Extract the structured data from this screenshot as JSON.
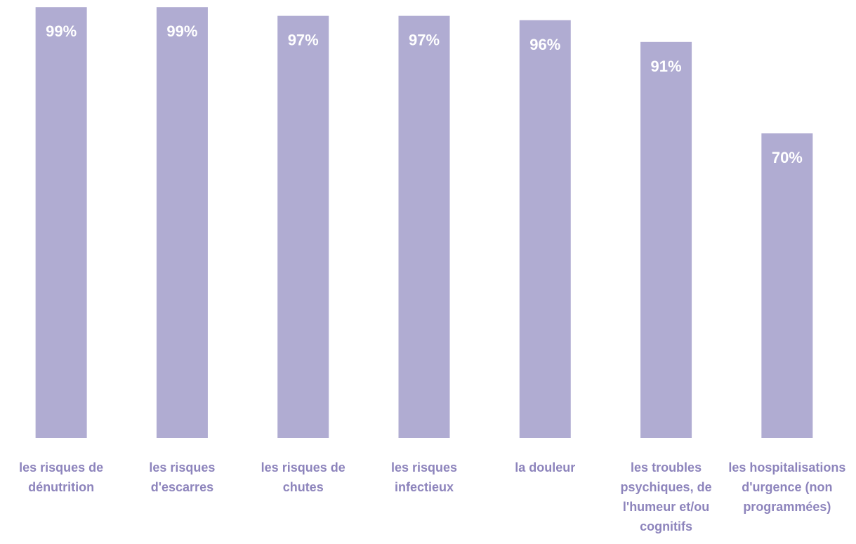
{
  "chart_data": {
    "type": "bar",
    "categories": [
      "les risques de dénutrition",
      "les risques d'escarres",
      "les risques de chutes",
      "les risques infectieux",
      "la douleur",
      "les troubles psychiques, de l'humeur et/ou cognitifs",
      "les hospitalisations d'urgence (non programmées)"
    ],
    "values": [
      99,
      99,
      97,
      97,
      96,
      91,
      70
    ],
    "value_labels": [
      "99%",
      "99%",
      "97%",
      "97%",
      "96%",
      "91%",
      "70%"
    ],
    "color": "#b0acd2",
    "ylim": [
      0,
      100
    ]
  }
}
